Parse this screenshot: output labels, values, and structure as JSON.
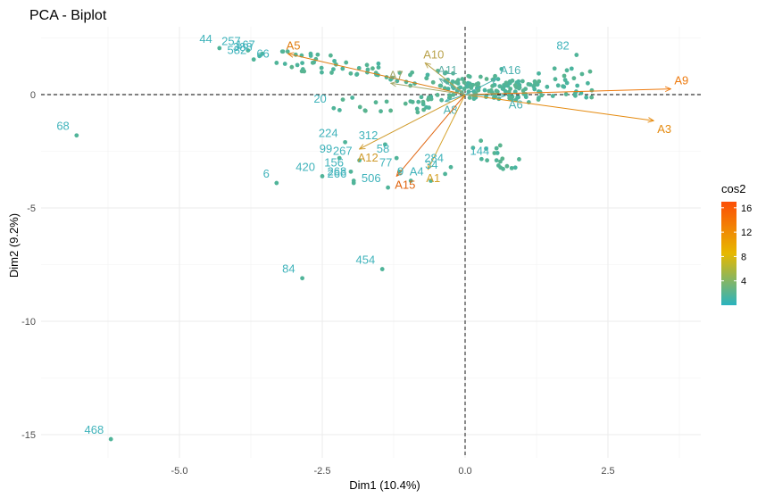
{
  "chart_data": {
    "type": "scatter",
    "title": "PCA - Biplot",
    "xlabel": "Dim1 (10.4%)",
    "ylabel": "Dim2 (9.2%)",
    "xlim": [
      -7.0,
      4.0
    ],
    "ylim": [
      -16.0,
      3.0
    ],
    "xticks": [
      -5.0,
      -2.5,
      0.0,
      2.5
    ],
    "xtick_labels": [
      "-5.0",
      "-2.5",
      "0.0",
      "2.5"
    ],
    "yticks": [
      -15,
      -10,
      -5,
      0
    ],
    "ytick_labels": [
      "-15",
      "-10",
      "-5",
      "0"
    ],
    "grid": true,
    "reference_lines": {
      "x": 0,
      "y": 0,
      "style": "dashed"
    },
    "legend": {
      "title": "cos2",
      "position": "right",
      "ticks": [
        4,
        8,
        12,
        16
      ],
      "range": [
        0,
        17
      ],
      "colors": [
        "#2ab3bf",
        "#e7b800",
        "#fc4e07"
      ]
    },
    "labeled_points": [
      {
        "label": "44",
        "x": -4.3,
        "y": 2.05
      },
      {
        "label": "257",
        "x": -3.8,
        "y": 1.95
      },
      {
        "label": "167",
        "x": -3.55,
        "y": 1.8
      },
      {
        "label": "582",
        "x": -3.7,
        "y": 1.55
      },
      {
        "label": "388",
        "x": -3.6,
        "y": 1.7
      },
      {
        "label": "66",
        "x": -3.3,
        "y": 1.4
      },
      {
        "label": "20",
        "x": -2.3,
        "y": -0.6
      },
      {
        "label": "68",
        "x": -6.8,
        "y": -1.8
      },
      {
        "label": "224",
        "x": -2.1,
        "y": -2.1
      },
      {
        "label": "312",
        "x": -1.4,
        "y": -2.2
      },
      {
        "label": "99",
        "x": -2.2,
        "y": -2.8
      },
      {
        "label": "267",
        "x": -1.85,
        "y": -2.9
      },
      {
        "label": "58",
        "x": -1.2,
        "y": -2.8
      },
      {
        "label": "420",
        "x": -2.5,
        "y": -3.6
      },
      {
        "label": "156",
        "x": -2.0,
        "y": -3.4
      },
      {
        "label": "77",
        "x": -1.15,
        "y": -3.4
      },
      {
        "label": "284",
        "x": -0.25,
        "y": -3.2
      },
      {
        "label": "144",
        "x": 0.55,
        "y": -2.9
      },
      {
        "label": "6",
        "x": -3.3,
        "y": -3.9
      },
      {
        "label": "268",
        "x": -1.95,
        "y": -3.8
      },
      {
        "label": "A4",
        "x": -0.6,
        "y": -3.8
      },
      {
        "label": "34",
        "x": -0.35,
        "y": -3.5
      },
      {
        "label": "506",
        "x": -1.35,
        "y": -4.1
      },
      {
        "label": "9",
        "x": -0.95,
        "y": -3.8
      },
      {
        "label": "266",
        "x": -1.95,
        "y": -3.9
      },
      {
        "label": "84",
        "x": -2.85,
        "y": -8.1
      },
      {
        "label": "454",
        "x": -1.45,
        "y": -7.7
      },
      {
        "label": "82",
        "x": 1.95,
        "y": 1.75
      },
      {
        "label": "468",
        "x": -6.2,
        "y": -15.2
      }
    ],
    "vectors": [
      {
        "label": "A5",
        "x": -3.1,
        "y": 1.8,
        "color": "#e07d10"
      },
      {
        "label": "A9",
        "x": 3.6,
        "y": 0.25,
        "color": "#ee7a0e"
      },
      {
        "label": "A3",
        "x": 3.3,
        "y": -1.15,
        "color": "#e58a0e"
      },
      {
        "label": "A10",
        "x": -0.7,
        "y": 1.4,
        "color": "#b9a24a"
      },
      {
        "label": "A7",
        "x": -1.3,
        "y": 0.5,
        "color": "#a5a86a"
      },
      {
        "label": "A11",
        "x": -0.45,
        "y": 0.7,
        "color": "#5fb0a6"
      },
      {
        "label": "A16",
        "x": 0.55,
        "y": 0.7,
        "color": "#4bb1b0"
      },
      {
        "label": "A6",
        "x": 0.7,
        "y": -0.05,
        "color": "#4bb1b0"
      },
      {
        "label": "A8",
        "x": -0.35,
        "y": -0.3,
        "color": "#4bb1b0"
      },
      {
        "label": "A12",
        "x": -1.85,
        "y": -2.4,
        "color": "#cf9a2a"
      },
      {
        "label": "A15",
        "x": -1.2,
        "y": -3.6,
        "color": "#e0650f"
      },
      {
        "label": "A1",
        "x": -0.65,
        "y": -3.3,
        "color": "#d6a22a"
      },
      {
        "label": "A3b",
        "x": 0.0,
        "y": 0.0,
        "color": "#4bb1b0",
        "hidden": true
      }
    ]
  }
}
